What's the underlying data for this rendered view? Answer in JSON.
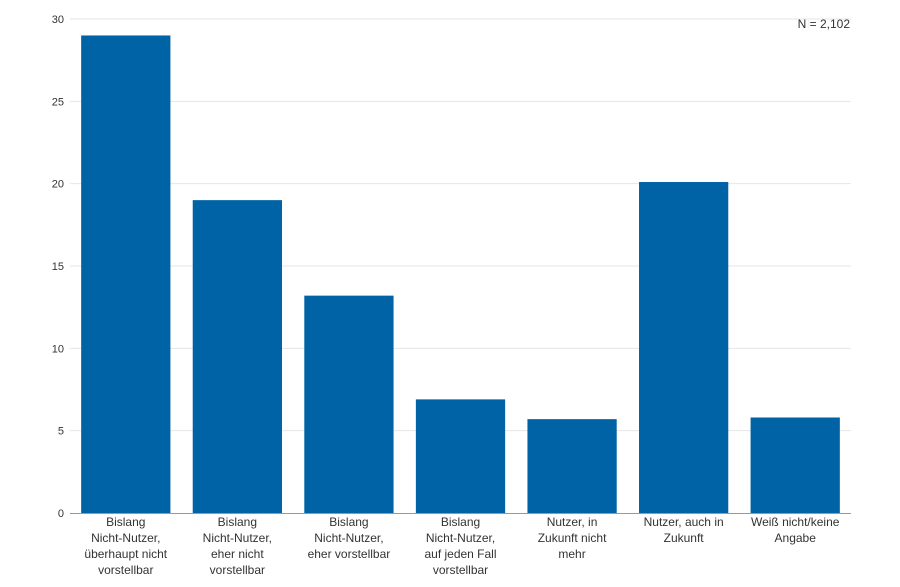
{
  "note": "N = 2,102",
  "colors": {
    "bar": "#0063a6",
    "grid": "#e6e6e6",
    "axis": "#999999",
    "text": "#333333"
  },
  "chart_data": {
    "type": "bar",
    "categories": [
      "Bislang\nNicht-Nutzer,\nüberhaupt nicht\nvorstellbar",
      "Bislang\nNicht-Nutzer,\neher nicht\nvorstellbar",
      "Bislang\nNicht-Nutzer,\neher vorstellbar",
      "Bislang\nNicht-Nutzer,\nauf jeden Fall\nvorstellbar",
      "Nutzer, in\nZukunft nicht\nmehr",
      "Nutzer, auch in\nZukunft",
      "Weiß nicht/keine\nAngabe"
    ],
    "values": [
      29,
      19,
      13.2,
      6.9,
      5.7,
      20.1,
      5.8
    ],
    "yticks": [
      0,
      5,
      10,
      15,
      20,
      25,
      30
    ],
    "ylim": [
      0,
      30
    ],
    "grid": true
  }
}
